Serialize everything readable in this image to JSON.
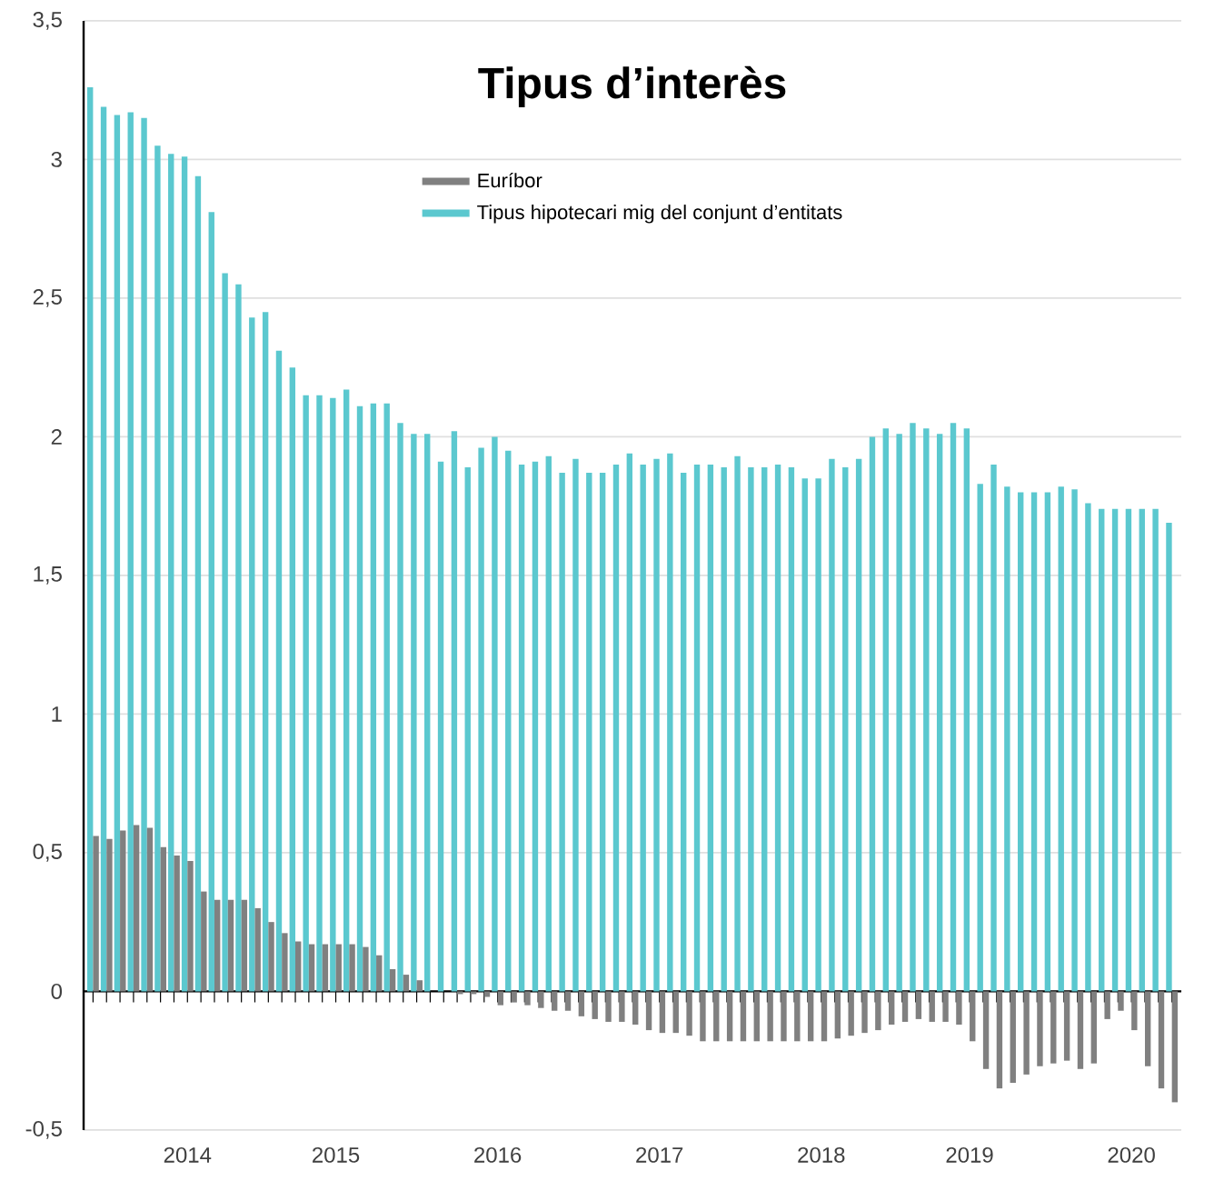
{
  "chart_data": {
    "type": "bar",
    "title": "Tipus d’interès",
    "categories": [
      null,
      null,
      null,
      null,
      null,
      null,
      null,
      "2014",
      null,
      null,
      null,
      null,
      null,
      null,
      null,
      null,
      null,
      null,
      "2015",
      null,
      null,
      null,
      null,
      null,
      null,
      null,
      null,
      null,
      null,
      null,
      "2016",
      null,
      null,
      null,
      null,
      null,
      null,
      null,
      null,
      null,
      null,
      null,
      "2017",
      null,
      null,
      null,
      null,
      null,
      null,
      null,
      null,
      null,
      null,
      null,
      "2018",
      null,
      null,
      null,
      null,
      null,
      null,
      null,
      null,
      null,
      null,
      "2019",
      null,
      null,
      null,
      null,
      null,
      null,
      null,
      null,
      null,
      null,
      null,
      "2020",
      null,
      null,
      null
    ],
    "series": [
      {
        "name": "Euríbor",
        "color": "#808080",
        "values": [
          0.56,
          0.55,
          0.58,
          0.6,
          0.59,
          0.52,
          0.49,
          0.47,
          0.36,
          0.33,
          0.33,
          0.33,
          0.3,
          0.25,
          0.21,
          0.18,
          0.17,
          0.17,
          0.17,
          0.17,
          0.16,
          0.13,
          0.08,
          0.06,
          0.04,
          0,
          0,
          -0.01,
          -0.01,
          -0.02,
          -0.05,
          -0.04,
          -0.05,
          -0.06,
          -0.07,
          -0.07,
          -0.09,
          -0.1,
          -0.11,
          -0.11,
          -0.12,
          -0.14,
          -0.15,
          -0.15,
          -0.16,
          -0.18,
          -0.18,
          -0.18,
          -0.18,
          -0.18,
          -0.18,
          -0.18,
          -0.18,
          -0.18,
          -0.18,
          -0.17,
          -0.16,
          -0.15,
          -0.14,
          -0.12,
          -0.11,
          -0.1,
          -0.11,
          -0.11,
          -0.12,
          -0.18,
          -0.28,
          -0.35,
          -0.33,
          -0.3,
          -0.27,
          -0.26,
          -0.25,
          -0.28,
          -0.26,
          -0.1,
          -0.07,
          -0.14,
          -0.27,
          -0.35,
          -0.4
        ]
      },
      {
        "name": "Tipus hipotecari mig del conjunt d’entitats",
        "color": "#5bc8cf",
        "values": [
          3.26,
          3.19,
          3.16,
          3.17,
          3.15,
          3.05,
          3.02,
          3.01,
          2.94,
          2.81,
          2.59,
          2.55,
          2.43,
          2.45,
          2.31,
          2.25,
          2.15,
          2.15,
          2.14,
          2.17,
          2.11,
          2.12,
          2.12,
          2.05,
          2.01,
          2.01,
          1.91,
          2.02,
          1.89,
          1.96,
          2.0,
          1.95,
          1.9,
          1.91,
          1.93,
          1.87,
          1.92,
          1.87,
          1.87,
          1.9,
          1.94,
          1.9,
          1.92,
          1.94,
          1.87,
          1.9,
          1.9,
          1.89,
          1.93,
          1.89,
          1.89,
          1.9,
          1.89,
          1.85,
          1.85,
          1.92,
          1.89,
          1.92,
          2.0,
          2.03,
          2.01,
          2.05,
          2.03,
          2.01,
          2.05,
          2.03,
          1.83,
          1.9,
          1.82,
          1.8,
          1.8,
          1.8,
          1.82,
          1.81,
          1.76,
          1.74,
          1.74,
          1.74,
          1.74,
          1.74,
          1.69
        ]
      }
    ],
    "ylim": [
      -0.5,
      3.5
    ],
    "yticks": [
      {
        "value": -0.5,
        "label": "-0,5"
      },
      0,
      {
        "value": 0.5,
        "label": "0,5"
      },
      1,
      {
        "value": 1.5,
        "label": "1,5"
      },
      2,
      {
        "value": 2.5,
        "label": "2,5"
      },
      3,
      {
        "value": 3.5,
        "label": "3,5"
      }
    ],
    "grid": "y",
    "legend": "top"
  }
}
